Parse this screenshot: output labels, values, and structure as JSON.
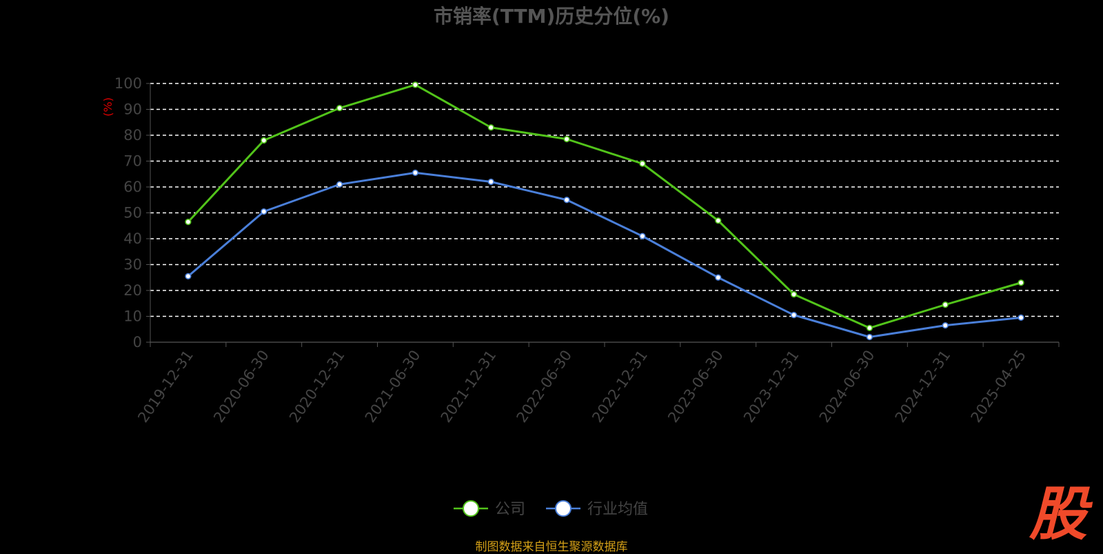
{
  "chart_data": {
    "type": "line",
    "title": "市销率(TTM)历史分位(%)",
    "ylabel": "(%)",
    "xlabel": "",
    "ylim": [
      0,
      100
    ],
    "yticks": [
      0,
      10,
      20,
      30,
      40,
      50,
      60,
      70,
      80,
      90,
      100
    ],
    "grid": "horizontal-dashed",
    "legend_position": "bottom-center",
    "categories": [
      "2019-12-31",
      "2020-06-30",
      "2020-12-31",
      "2021-06-30",
      "2021-12-31",
      "2022-06-30",
      "2022-12-31",
      "2023-06-30",
      "2023-12-31",
      "2024-06-30",
      "2024-12-31",
      "2025-04-25"
    ],
    "series": [
      {
        "name": "公司",
        "color": "#52c41a",
        "values": [
          46.5,
          78,
          90.5,
          99.5,
          83,
          78.5,
          69,
          47,
          18.5,
          5.5,
          14.5,
          23
        ]
      },
      {
        "name": "行业均值",
        "color": "#4a7fd9",
        "values": [
          25.5,
          50.5,
          61,
          65.5,
          62,
          55,
          41,
          25,
          10.5,
          2,
          6.5,
          9.5
        ]
      }
    ]
  },
  "source": "制图数据来自恒生聚源数据库",
  "watermark": "股"
}
